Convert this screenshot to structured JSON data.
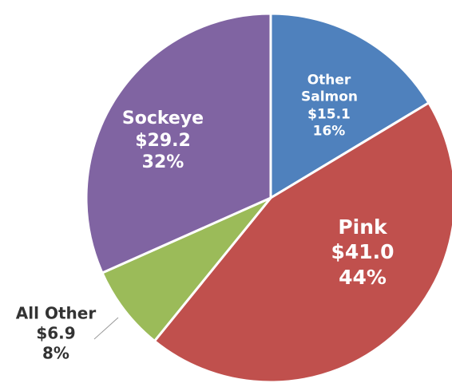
{
  "chart_data": {
    "type": "pie",
    "categories": [
      "Other Salmon",
      "Pink",
      "All Other",
      "Sockeye"
    ],
    "values": [
      15.1,
      41.0,
      6.9,
      29.2
    ],
    "value_labels": [
      "$15.1",
      "$41.0",
      "$6.9",
      "$29.2"
    ],
    "percent_labels": [
      "16%",
      "44%",
      "8%",
      "32%"
    ],
    "colors": [
      "#4f81bd",
      "#c0504d",
      "#9bbb59",
      "#8064a2"
    ]
  }
}
